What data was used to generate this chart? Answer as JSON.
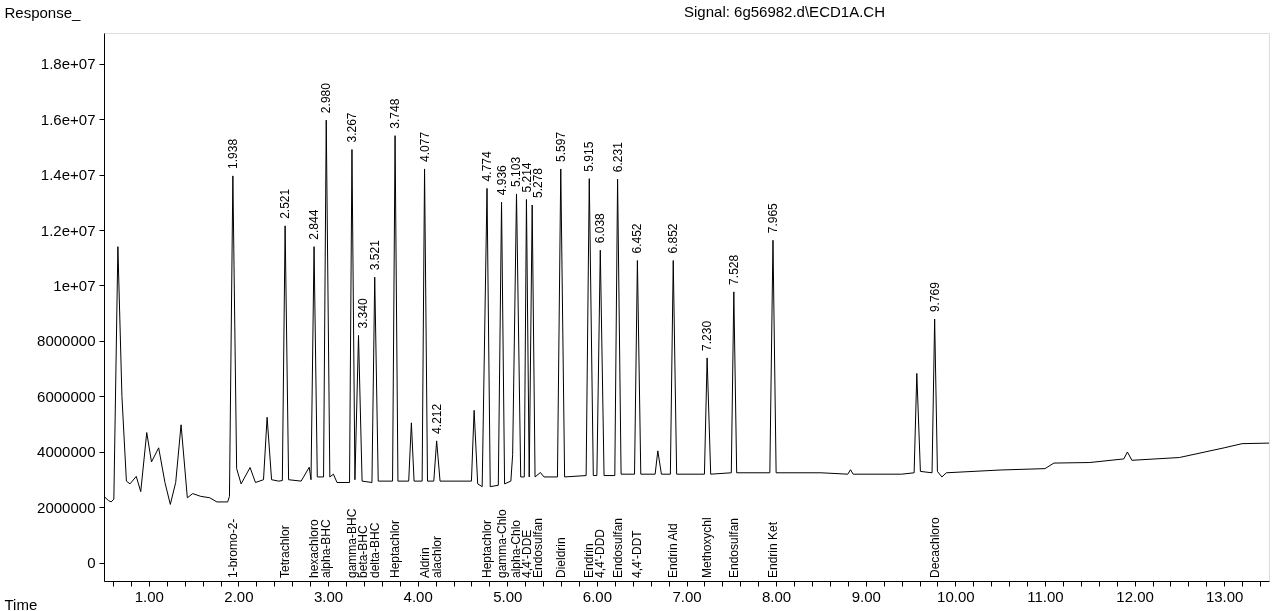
{
  "chart_data": {
    "type": "line",
    "title": "Signal: 6g56982.d\\ECD1A.CH",
    "xlabel": "Time",
    "ylabel": "Response_",
    "xlim": [
      0.5,
      13.5
    ],
    "ylim": [
      -650000,
      19100000
    ],
    "grid": false,
    "xticks": [
      {
        "value": 0.6,
        "label": null
      },
      {
        "value": 0.8,
        "label": null
      },
      {
        "value": 1,
        "label": "1.00"
      },
      {
        "value": 1.2,
        "label": null
      },
      {
        "value": 1.4,
        "label": null
      },
      {
        "value": 1.6,
        "label": null
      },
      {
        "value": 1.8,
        "label": null
      },
      {
        "value": 2,
        "label": "2.00"
      },
      {
        "value": 2.2,
        "label": null
      },
      {
        "value": 2.4,
        "label": null
      },
      {
        "value": 2.6,
        "label": null
      },
      {
        "value": 2.8,
        "label": null
      },
      {
        "value": 3,
        "label": "3.00"
      },
      {
        "value": 3.2,
        "label": null
      },
      {
        "value": 3.4,
        "label": null
      },
      {
        "value": 3.6,
        "label": null
      },
      {
        "value": 3.8,
        "label": null
      },
      {
        "value": 4,
        "label": "4.00"
      },
      {
        "value": 4.2,
        "label": null
      },
      {
        "value": 4.4,
        "label": null
      },
      {
        "value": 4.6,
        "label": null
      },
      {
        "value": 4.8,
        "label": null
      },
      {
        "value": 5,
        "label": "5.00"
      },
      {
        "value": 5.2,
        "label": null
      },
      {
        "value": 5.4,
        "label": null
      },
      {
        "value": 5.6,
        "label": null
      },
      {
        "value": 5.8,
        "label": null
      },
      {
        "value": 6,
        "label": "6.00"
      },
      {
        "value": 6.2,
        "label": null
      },
      {
        "value": 6.4,
        "label": null
      },
      {
        "value": 6.6,
        "label": null
      },
      {
        "value": 6.8,
        "label": null
      },
      {
        "value": 7,
        "label": "7.00"
      },
      {
        "value": 7.2,
        "label": null
      },
      {
        "value": 7.4,
        "label": null
      },
      {
        "value": 7.6,
        "label": null
      },
      {
        "value": 7.8,
        "label": null
      },
      {
        "value": 8,
        "label": "8.00"
      },
      {
        "value": 8.2,
        "label": null
      },
      {
        "value": 8.4,
        "label": null
      },
      {
        "value": 8.6,
        "label": null
      },
      {
        "value": 8.8,
        "label": null
      },
      {
        "value": 9,
        "label": "9.00"
      },
      {
        "value": 9.2,
        "label": null
      },
      {
        "value": 9.4,
        "label": null
      },
      {
        "value": 9.6,
        "label": null
      },
      {
        "value": 9.8,
        "label": null
      },
      {
        "value": 10,
        "label": "10.00"
      },
      {
        "value": 10.2,
        "label": null
      },
      {
        "value": 10.4,
        "label": null
      },
      {
        "value": 10.6,
        "label": null
      },
      {
        "value": 10.8,
        "label": null
      },
      {
        "value": 11,
        "label": "11.00"
      },
      {
        "value": 11.2,
        "label": null
      },
      {
        "value": 11.4,
        "label": null
      },
      {
        "value": 11.6,
        "label": null
      },
      {
        "value": 11.8,
        "label": null
      },
      {
        "value": 12,
        "label": "12.00"
      },
      {
        "value": 12.2,
        "label": null
      },
      {
        "value": 12.4,
        "label": null
      },
      {
        "value": 12.6,
        "label": null
      },
      {
        "value": 12.8,
        "label": null
      },
      {
        "value": 13,
        "label": "13.00"
      },
      {
        "value": 13.2,
        "label": null
      },
      {
        "value": 13.4,
        "label": null
      }
    ],
    "yticks": [
      0,
      2000000,
      4000000,
      6000000,
      8000000,
      {
        "value": 10000000,
        "label": "1e+07"
      },
      {
        "value": 12000000,
        "label": "1.2e+07"
      },
      {
        "value": 14000000,
        "label": "1.4e+07"
      },
      {
        "value": 16000000,
        "label": "1.6e+07"
      },
      {
        "value": 18000000,
        "label": "1.8e+07"
      }
    ],
    "series": [
      {
        "color": "#000000",
        "x": [
          0.5,
          0.55,
          0.58,
          0.61,
          0.655,
          0.7,
          0.75,
          0.79,
          0.86,
          0.91,
          0.977,
          1.03,
          1.11,
          1.18,
          1.24,
          1.3,
          1.36,
          1.43,
          1.49,
          1.58,
          1.68,
          1.76,
          1.88,
          1.9,
          1.938,
          1.98,
          2.03,
          2.13,
          2.19,
          2.28,
          2.32,
          2.37,
          2.45,
          2.49,
          2.521,
          2.56,
          2.7,
          2.79,
          2.81,
          2.844,
          2.88,
          2.95,
          2.98,
          3.02,
          3.06,
          3.1,
          3.24,
          3.267,
          3.3,
          3.34,
          3.38,
          3.49,
          3.521,
          3.56,
          3.72,
          3.748,
          3.78,
          3.9,
          3.93,
          3.96,
          4.05,
          4.077,
          4.11,
          4.18,
          4.212,
          4.25,
          4.6,
          4.63,
          4.67,
          4.72,
          4.774,
          4.81,
          4.9,
          4.936,
          4.97,
          5.04,
          5.06,
          5.103,
          5.15,
          5.19,
          5.214,
          5.245,
          5.278,
          5.31,
          5.37,
          5.41,
          5.56,
          5.597,
          5.64,
          5.88,
          5.915,
          5.96,
          6.0,
          6.038,
          6.08,
          6.2,
          6.231,
          6.27,
          6.42,
          6.452,
          6.49,
          6.65,
          6.68,
          6.72,
          6.82,
          6.852,
          6.89,
          7.2,
          7.23,
          7.27,
          7.5,
          7.528,
          7.56,
          7.93,
          7.965,
          8.0,
          8.5,
          8.8,
          8.83,
          8.86,
          9.4,
          9.54,
          9.57,
          9.61,
          9.74,
          9.769,
          9.8,
          9.85,
          9.9,
          10.5,
          11.0,
          11.1,
          11.5,
          11.88,
          11.92,
          11.97,
          12.5,
          13.0,
          13.2,
          13.5
        ],
        "values": [
          2400000,
          2250000,
          2200000,
          2300000,
          11400000,
          6000000,
          2950000,
          2850000,
          3120000,
          2570000,
          4700000,
          3640000,
          4150000,
          2900000,
          2110000,
          2900000,
          4980000,
          2350000,
          2500000,
          2400000,
          2350000,
          2200000,
          2200000,
          2400000,
          13950000,
          3400000,
          2850000,
          3440000,
          2900000,
          3000000,
          5250000,
          3000000,
          2950000,
          2970000,
          12150000,
          3000000,
          2950000,
          3450000,
          3000000,
          11400000,
          3100000,
          3100000,
          15960000,
          3100000,
          3200000,
          2900000,
          2900000,
          14900000,
          3000000,
          8200000,
          2950000,
          2900000,
          10300000,
          2950000,
          2950000,
          15400000,
          2950000,
          2950000,
          5050000,
          2950000,
          2950000,
          14200000,
          2950000,
          2950000,
          4400000,
          2950000,
          2950000,
          5500000,
          2850000,
          2750000,
          13500000,
          2750000,
          2800000,
          13000000,
          2850000,
          2950000,
          3900000,
          13300000,
          3100000,
          3100000,
          13100000,
          3100000,
          12900000,
          3100000,
          3260000,
          3100000,
          3100000,
          14200000,
          3100000,
          3150000,
          13850000,
          3150000,
          3150000,
          11270000,
          3150000,
          3150000,
          13830000,
          3200000,
          3200000,
          10900000,
          3200000,
          3200000,
          4040000,
          3200000,
          3200000,
          10900000,
          3200000,
          3200000,
          7390000,
          3200000,
          3250000,
          9770000,
          3250000,
          3250000,
          11630000,
          3250000,
          3250000,
          3200000,
          3360000,
          3200000,
          3200000,
          3250000,
          6830000,
          3300000,
          3250000,
          8790000,
          3300000,
          3100000,
          3250000,
          3350000,
          3400000,
          3600000,
          3620000,
          3750000,
          4000000,
          3700000,
          3800000,
          4150000,
          4300000,
          4320000
        ]
      }
    ],
    "annotations": [
      {
        "text": "1.938",
        "x": 1.938,
        "y": 13950000
      },
      {
        "text": "2.521",
        "x": 2.521,
        "y": 12150000
      },
      {
        "text": "2.844",
        "x": 2.844,
        "y": 11400000
      },
      {
        "text": "2.980",
        "x": 2.98,
        "y": 15960000
      },
      {
        "text": "3.267",
        "x": 3.267,
        "y": 14900000
      },
      {
        "text": "3.340",
        "x": 3.34,
        "y": 8200000
      },
      {
        "text": "3.521",
        "x": 3.521,
        "y": 10300000
      },
      {
        "text": "3.748",
        "x": 3.748,
        "y": 15400000
      },
      {
        "text": "4.077",
        "x": 4.077,
        "y": 14200000
      },
      {
        "text": "4.212",
        "x": 4.212,
        "y": 4400000
      },
      {
        "text": "4.774",
        "x": 4.774,
        "y": 13500000
      },
      {
        "text": "4.936",
        "x": 4.936,
        "y": 13000000
      },
      {
        "text": "5.103",
        "x": 5.103,
        "y": 13300000
      },
      {
        "text": "5.214",
        "x": 5.214,
        "y": 13100000
      },
      {
        "text": "5.278",
        "x": 5.278,
        "y": 12900000
      },
      {
        "text": "5.597",
        "x": 5.597,
        "y": 14200000
      },
      {
        "text": "5.915",
        "x": 5.915,
        "y": 13850000
      },
      {
        "text": "6.038",
        "x": 6.038,
        "y": 11270000
      },
      {
        "text": "6.231",
        "x": 6.231,
        "y": 13830000
      },
      {
        "text": "6.452",
        "x": 6.452,
        "y": 10900000
      },
      {
        "text": "6.852",
        "x": 6.852,
        "y": 10900000
      },
      {
        "text": "7.230",
        "x": 7.23,
        "y": 7390000
      },
      {
        "text": "7.528",
        "x": 7.528,
        "y": 9770000
      },
      {
        "text": "7.965",
        "x": 7.965,
        "y": 11630000
      },
      {
        "text": "9.769",
        "x": 9.769,
        "y": 8790000
      },
      "1-bromo-2-",
      "Tetrachlor",
      "hexachloro",
      "alpha-BHC",
      "gamma-BHC",
      "beta-BHC",
      "delta-BHC",
      "Heptachlor",
      "Aldrin",
      "alachlor",
      "Heptachlor",
      "gamma-Chlo",
      "alpha-Chlo",
      "4,4'-DDE",
      "Endosulfan",
      "Dieldrin",
      "Endrin",
      "4,4'-DDD",
      "Endosulfan",
      "4,4'-DDT",
      "Endrin Ald",
      "Methoxychl",
      "Endosulfan",
      "Endrin Ket",
      "Decachloro"
    ]
  }
}
